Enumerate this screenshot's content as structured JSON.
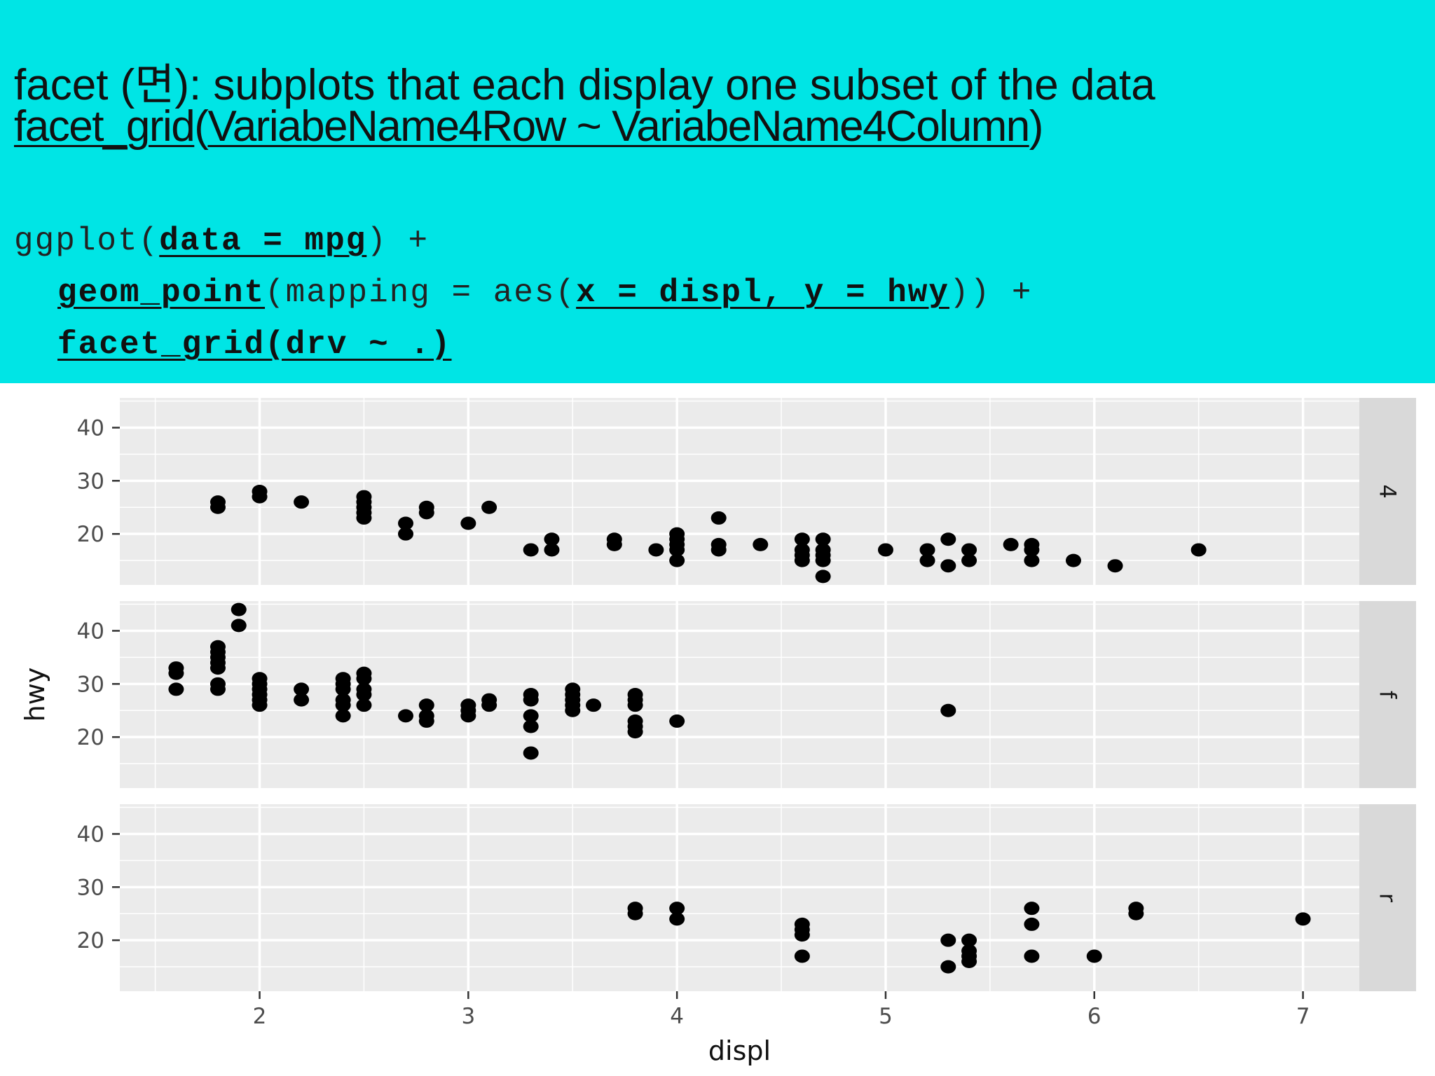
{
  "slide": {
    "title_line1": "facet (면): subplots that each display one subset of the data",
    "title_line2": {
      "fn": "facet_grid",
      "open": "(",
      "formula": "VariabeName4Row ~ VariabeName4Column",
      "close": ")"
    },
    "code": {
      "l1_a": "ggplot(",
      "l1_b": "data = mpg",
      "l1_c": ") +",
      "l2_a": "geom_point",
      "l2_b": "(mapping = aes(",
      "l2_c": "x = displ, y = hwy",
      "l2_d": ")) +",
      "l3": "facet_grid(drv ~ .)"
    },
    "banner_color": "#00e5e5"
  },
  "chart_data": {
    "type": "scatter",
    "xlabel": "displ",
    "ylabel": "hwy",
    "xlim": [
      1.33,
      7.27
    ],
    "ylim": [
      10.4,
      45.6
    ],
    "x_ticks": [
      2,
      3,
      4,
      5,
      6,
      7
    ],
    "y_ticks": [
      20,
      30,
      40
    ],
    "grid": true,
    "panel_color": "#ebebeb",
    "strip_color": "#d9d9d9",
    "point_color": "#000000",
    "facets": [
      {
        "label": "4",
        "points": [
          [
            1.8,
            26
          ],
          [
            1.8,
            25
          ],
          [
            2.0,
            28
          ],
          [
            2.0,
            27
          ],
          [
            2.2,
            26
          ],
          [
            2.5,
            27
          ],
          [
            2.5,
            26
          ],
          [
            2.5,
            25
          ],
          [
            2.5,
            24
          ],
          [
            2.5,
            23
          ],
          [
            2.7,
            22
          ],
          [
            2.7,
            20
          ],
          [
            2.8,
            25
          ],
          [
            2.8,
            24
          ],
          [
            3.0,
            22
          ],
          [
            3.1,
            25
          ],
          [
            3.3,
            17
          ],
          [
            3.4,
            19
          ],
          [
            3.4,
            17
          ],
          [
            3.7,
            19
          ],
          [
            3.7,
            18
          ],
          [
            3.9,
            17
          ],
          [
            4.0,
            20
          ],
          [
            4.0,
            19
          ],
          [
            4.0,
            18
          ],
          [
            4.0,
            17
          ],
          [
            4.0,
            15
          ],
          [
            4.2,
            23
          ],
          [
            4.2,
            18
          ],
          [
            4.2,
            17
          ],
          [
            4.4,
            18
          ],
          [
            4.6,
            19
          ],
          [
            4.6,
            17
          ],
          [
            4.6,
            16
          ],
          [
            4.6,
            15
          ],
          [
            4.7,
            19
          ],
          [
            4.7,
            17
          ],
          [
            4.7,
            16
          ],
          [
            4.7,
            15
          ],
          [
            4.7,
            12
          ],
          [
            5.0,
            17
          ],
          [
            5.2,
            17
          ],
          [
            5.2,
            15
          ],
          [
            5.3,
            19
          ],
          [
            5.3,
            14
          ],
          [
            5.4,
            17
          ],
          [
            5.4,
            15
          ],
          [
            5.6,
            18
          ],
          [
            5.7,
            18
          ],
          [
            5.7,
            17
          ],
          [
            5.7,
            15
          ],
          [
            5.9,
            15
          ],
          [
            6.1,
            14
          ],
          [
            6.5,
            17
          ]
        ]
      },
      {
        "label": "f",
        "points": [
          [
            1.6,
            33
          ],
          [
            1.6,
            32
          ],
          [
            1.6,
            29
          ],
          [
            1.8,
            37
          ],
          [
            1.8,
            36
          ],
          [
            1.8,
            35
          ],
          [
            1.8,
            34
          ],
          [
            1.8,
            33
          ],
          [
            1.8,
            30
          ],
          [
            1.8,
            29
          ],
          [
            1.9,
            44
          ],
          [
            1.9,
            41
          ],
          [
            2.0,
            31
          ],
          [
            2.0,
            30
          ],
          [
            2.0,
            29
          ],
          [
            2.0,
            28
          ],
          [
            2.0,
            27
          ],
          [
            2.0,
            26
          ],
          [
            2.2,
            29
          ],
          [
            2.2,
            27
          ],
          [
            2.4,
            31
          ],
          [
            2.4,
            30
          ],
          [
            2.4,
            29
          ],
          [
            2.4,
            27
          ],
          [
            2.4,
            26
          ],
          [
            2.4,
            24
          ],
          [
            2.5,
            32
          ],
          [
            2.5,
            31
          ],
          [
            2.5,
            29
          ],
          [
            2.5,
            28
          ],
          [
            2.5,
            26
          ],
          [
            2.7,
            24
          ],
          [
            2.8,
            26
          ],
          [
            2.8,
            24
          ],
          [
            2.8,
            23
          ],
          [
            3.0,
            26
          ],
          [
            3.0,
            25
          ],
          [
            3.0,
            24
          ],
          [
            3.1,
            27
          ],
          [
            3.1,
            26
          ],
          [
            3.3,
            28
          ],
          [
            3.3,
            27
          ],
          [
            3.3,
            24
          ],
          [
            3.3,
            22
          ],
          [
            3.3,
            17
          ],
          [
            3.5,
            29
          ],
          [
            3.5,
            28
          ],
          [
            3.5,
            27
          ],
          [
            3.5,
            26
          ],
          [
            3.5,
            25
          ],
          [
            3.6,
            26
          ],
          [
            3.8,
            28
          ],
          [
            3.8,
            27
          ],
          [
            3.8,
            26
          ],
          [
            3.8,
            23
          ],
          [
            3.8,
            22
          ],
          [
            3.8,
            21
          ],
          [
            4.0,
            23
          ],
          [
            5.3,
            25
          ]
        ]
      },
      {
        "label": "r",
        "points": [
          [
            3.8,
            26
          ],
          [
            3.8,
            25
          ],
          [
            4.0,
            26
          ],
          [
            4.0,
            24
          ],
          [
            4.6,
            23
          ],
          [
            4.6,
            22
          ],
          [
            4.6,
            21
          ],
          [
            4.6,
            17
          ],
          [
            5.3,
            20
          ],
          [
            5.3,
            15
          ],
          [
            5.4,
            20
          ],
          [
            5.4,
            18
          ],
          [
            5.4,
            17
          ],
          [
            5.4,
            16
          ],
          [
            5.7,
            26
          ],
          [
            5.7,
            23
          ],
          [
            5.7,
            17
          ],
          [
            6.0,
            17
          ],
          [
            6.2,
            26
          ],
          [
            6.2,
            25
          ],
          [
            7.0,
            24
          ]
        ]
      }
    ]
  }
}
